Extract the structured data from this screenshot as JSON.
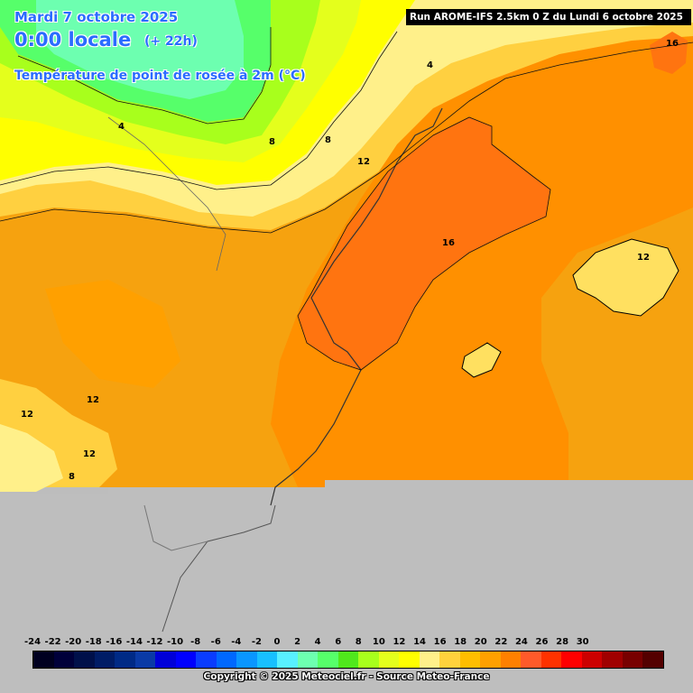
{
  "header": {
    "date": "Mardi 7 octobre 2025",
    "time": "0:00 locale",
    "offset": "(+ 22h)",
    "parameter": "Température de point de rosée à 2m (°C)",
    "run": "Run AROME-IFS 2.5km 0 Z du Lundi 6 octobre 2025"
  },
  "contour_labels": [
    "16",
    "4",
    "4",
    "8",
    "8",
    "12",
    "16",
    "12",
    "12",
    "12",
    "12",
    "8"
  ],
  "legend": {
    "ticks": [
      "-24",
      "-22",
      "-20",
      "-18",
      "-16",
      "-14",
      "-12",
      "-10",
      "-8",
      "-6",
      "-4",
      "-2",
      "0",
      "2",
      "4",
      "6",
      "8",
      "10",
      "12",
      "14",
      "16",
      "18",
      "20",
      "22",
      "24",
      "26",
      "28",
      "30"
    ],
    "colors": [
      "#000020",
      "#00003a",
      "#00104a",
      "#001c66",
      "#002a86",
      "#0a3aa6",
      "#0000d8",
      "#0000ff",
      "#0a3cff",
      "#0068ff",
      "#0a96ff",
      "#18c0ff",
      "#58f0ff",
      "#6dffb0",
      "#56ff6a",
      "#50e81c",
      "#a8ff1c",
      "#e4ff1c",
      "#ffff00",
      "#fff08a",
      "#ffd23c",
      "#ffbe00",
      "#ffa000",
      "#ff8000",
      "#ff5a2a",
      "#ff3200",
      "#ff0000",
      "#cc0000",
      "#a00000",
      "#780000",
      "#540000"
    ]
  },
  "copyright": "Copyright © 2025 Meteociel.fr - Source Meteo-France"
}
